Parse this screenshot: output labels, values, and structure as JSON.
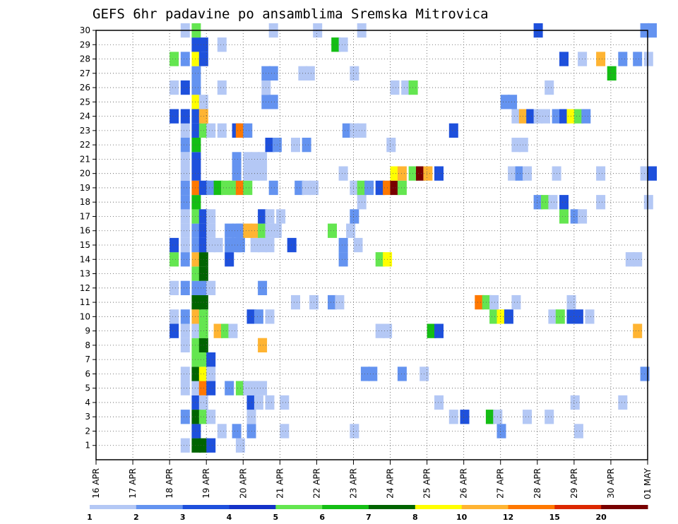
{
  "chart_data": {
    "type": "heatmap",
    "title": "GEFS 6hr padavine po ansamblima Sremska Mitrovica",
    "xlabel": "",
    "ylabel": "",
    "x_tick_labels": [
      "16 APR",
      "17 APR",
      "18 APR",
      "19 APR",
      "20 APR",
      "21 APR",
      "22 APR",
      "23 APR",
      "24 APR",
      "25 APR",
      "26 APR",
      "27 APR",
      "28 APR",
      "29 APR",
      "30 APR",
      "01 MAY"
    ],
    "x_range_days": [
      0,
      15
    ],
    "y_tick_labels": [
      "1",
      "2",
      "3",
      "4",
      "5",
      "6",
      "7",
      "8",
      "9",
      "10",
      "11",
      "12",
      "13",
      "14",
      "15",
      "16",
      "17",
      "18",
      "19",
      "20",
      "21",
      "22",
      "23",
      "24",
      "25",
      "26",
      "27",
      "28",
      "29",
      "30"
    ],
    "y_range": [
      0,
      30
    ],
    "grid": true,
    "colorbar": {
      "labels": [
        "1",
        "2",
        "3",
        "4",
        "5",
        "6",
        "7",
        "8",
        "10",
        "12",
        "15",
        "20"
      ],
      "colors": [
        "#b4c8f5",
        "#6493f0",
        "#1e50dc",
        "#1432c8",
        "#64e650",
        "#14be14",
        "#006400",
        "#ffff00",
        "#ffb432",
        "#ff7800",
        "#dc2800",
        "#780000"
      ]
    },
    "cells": [
      [
        1,
        2.3,
        1
      ],
      [
        1,
        2.6,
        7
      ],
      [
        1,
        2.8,
        7
      ],
      [
        1,
        3.0,
        3
      ],
      [
        1,
        3.8,
        1
      ],
      [
        2,
        2.6,
        3
      ],
      [
        2,
        3.3,
        1
      ],
      [
        2,
        3.7,
        2
      ],
      [
        2,
        4.1,
        2
      ],
      [
        2,
        5.0,
        1
      ],
      [
        2,
        6.9,
        1
      ],
      [
        2,
        10.9,
        2
      ],
      [
        2,
        13.0,
        1
      ],
      [
        3,
        2.3,
        2
      ],
      [
        3,
        2.6,
        7
      ],
      [
        3,
        2.8,
        5
      ],
      [
        3,
        3.0,
        1
      ],
      [
        3,
        4.1,
        1
      ],
      [
        3,
        9.6,
        1
      ],
      [
        3,
        9.9,
        3
      ],
      [
        3,
        10.6,
        6
      ],
      [
        3,
        10.8,
        1
      ],
      [
        3,
        11.6,
        1
      ],
      [
        3,
        12.2,
        1
      ],
      [
        4,
        2.6,
        3
      ],
      [
        4,
        2.8,
        1
      ],
      [
        4,
        4.1,
        3
      ],
      [
        4,
        4.3,
        1
      ],
      [
        4,
        4.6,
        1
      ],
      [
        4,
        5.0,
        1
      ],
      [
        4,
        9.2,
        1
      ],
      [
        4,
        12.9,
        1
      ],
      [
        4,
        14.2,
        1
      ],
      [
        5,
        2.3,
        1
      ],
      [
        5,
        2.6,
        1
      ],
      [
        5,
        2.8,
        10
      ],
      [
        5,
        3.0,
        3
      ],
      [
        5,
        3.5,
        2
      ],
      [
        5,
        3.8,
        5
      ],
      [
        5,
        4.0,
        1
      ],
      [
        5,
        4.2,
        1
      ],
      [
        5,
        4.4,
        1
      ],
      [
        6,
        2.3,
        1
      ],
      [
        6,
        2.6,
        7
      ],
      [
        6,
        2.8,
        8
      ],
      [
        6,
        3.0,
        1
      ],
      [
        6,
        7.2,
        2
      ],
      [
        6,
        7.4,
        2
      ],
      [
        6,
        8.2,
        2
      ],
      [
        6,
        8.8,
        1
      ],
      [
        6,
        14.8,
        2
      ],
      [
        7,
        2.6,
        5
      ],
      [
        7,
        2.8,
        5
      ],
      [
        7,
        3.0,
        3
      ],
      [
        8,
        2.3,
        1
      ],
      [
        8,
        2.6,
        5
      ],
      [
        8,
        2.8,
        7
      ],
      [
        8,
        4.4,
        9
      ],
      [
        9,
        2.0,
        3
      ],
      [
        9,
        2.3,
        1
      ],
      [
        9,
        2.6,
        1
      ],
      [
        9,
        2.8,
        5
      ],
      [
        9,
        3.2,
        9
      ],
      [
        9,
        3.4,
        5
      ],
      [
        9,
        3.6,
        1
      ],
      [
        9,
        7.6,
        1
      ],
      [
        9,
        7.8,
        1
      ],
      [
        9,
        9.0,
        6
      ],
      [
        9,
        9.2,
        3
      ],
      [
        9,
        14.6,
        9
      ],
      [
        10,
        2.0,
        1
      ],
      [
        10,
        2.3,
        2
      ],
      [
        10,
        2.6,
        9
      ],
      [
        10,
        2.8,
        5
      ],
      [
        10,
        4.1,
        3
      ],
      [
        10,
        4.3,
        2
      ],
      [
        10,
        4.6,
        1
      ],
      [
        10,
        10.7,
        5
      ],
      [
        10,
        10.9,
        8
      ],
      [
        10,
        11.1,
        3
      ],
      [
        10,
        12.3,
        1
      ],
      [
        10,
        12.5,
        5
      ],
      [
        10,
        12.8,
        3
      ],
      [
        10,
        13.0,
        3
      ],
      [
        10,
        13.3,
        1
      ],
      [
        11,
        2.6,
        7
      ],
      [
        11,
        2.8,
        7
      ],
      [
        11,
        5.3,
        1
      ],
      [
        11,
        5.8,
        1
      ],
      [
        11,
        6.3,
        2
      ],
      [
        11,
        6.5,
        1
      ],
      [
        11,
        10.3,
        10
      ],
      [
        11,
        10.5,
        5
      ],
      [
        11,
        10.7,
        1
      ],
      [
        11,
        11.3,
        1
      ],
      [
        11,
        12.8,
        1
      ],
      [
        12,
        2.0,
        1
      ],
      [
        12,
        2.3,
        2
      ],
      [
        12,
        2.6,
        2
      ],
      [
        12,
        2.8,
        2
      ],
      [
        12,
        3.0,
        1
      ],
      [
        12,
        4.4,
        2
      ],
      [
        13,
        2.6,
        5
      ],
      [
        13,
        2.8,
        7
      ],
      [
        14,
        2.0,
        5
      ],
      [
        14,
        2.3,
        2
      ],
      [
        14,
        2.6,
        9
      ],
      [
        14,
        2.8,
        7
      ],
      [
        14,
        3.5,
        3
      ],
      [
        14,
        6.6,
        2
      ],
      [
        14,
        7.6,
        5
      ],
      [
        14,
        7.8,
        8
      ],
      [
        14,
        14.4,
        1
      ],
      [
        14,
        14.6,
        1
      ],
      [
        15,
        2.0,
        3
      ],
      [
        15,
        2.3,
        1
      ],
      [
        15,
        2.6,
        2
      ],
      [
        15,
        2.8,
        3
      ],
      [
        15,
        3.0,
        1
      ],
      [
        15,
        3.2,
        1
      ],
      [
        15,
        3.5,
        2
      ],
      [
        15,
        3.7,
        2
      ],
      [
        15,
        3.8,
        2
      ],
      [
        15,
        4.2,
        1
      ],
      [
        15,
        4.4,
        1
      ],
      [
        15,
        4.6,
        1
      ],
      [
        15,
        5.2,
        3
      ],
      [
        15,
        6.6,
        2
      ],
      [
        15,
        7.0,
        1
      ],
      [
        16,
        2.3,
        1
      ],
      [
        16,
        2.6,
        2
      ],
      [
        16,
        2.8,
        3
      ],
      [
        16,
        3.0,
        1
      ],
      [
        16,
        3.5,
        2
      ],
      [
        16,
        3.7,
        2
      ],
      [
        16,
        3.8,
        2
      ],
      [
        16,
        4.0,
        9
      ],
      [
        16,
        4.2,
        9
      ],
      [
        16,
        4.4,
        5
      ],
      [
        16,
        4.6,
        1
      ],
      [
        16,
        4.8,
        1
      ],
      [
        16,
        6.3,
        5
      ],
      [
        16,
        6.8,
        1
      ],
      [
        17,
        2.3,
        1
      ],
      [
        17,
        2.6,
        5
      ],
      [
        17,
        2.8,
        3
      ],
      [
        17,
        3.0,
        1
      ],
      [
        17,
        4.4,
        3
      ],
      [
        17,
        4.6,
        1
      ],
      [
        17,
        4.9,
        1
      ],
      [
        17,
        6.9,
        2
      ],
      [
        17,
        12.6,
        5
      ],
      [
        17,
        12.9,
        2
      ],
      [
        17,
        13.1,
        1
      ],
      [
        18,
        2.3,
        2
      ],
      [
        18,
        2.6,
        6
      ],
      [
        18,
        7.1,
        1
      ],
      [
        18,
        11.9,
        2
      ],
      [
        18,
        12.1,
        5
      ],
      [
        18,
        12.3,
        1
      ],
      [
        18,
        12.6,
        3
      ],
      [
        18,
        13.6,
        1
      ],
      [
        18,
        14.9,
        1
      ],
      [
        19,
        2.3,
        2
      ],
      [
        19,
        2.6,
        10
      ],
      [
        19,
        2.8,
        3
      ],
      [
        19,
        3.0,
        2
      ],
      [
        19,
        3.2,
        6
      ],
      [
        19,
        3.4,
        5
      ],
      [
        19,
        3.6,
        5
      ],
      [
        19,
        3.8,
        10
      ],
      [
        19,
        4.0,
        5
      ],
      [
        19,
        4.7,
        2
      ],
      [
        19,
        5.4,
        2
      ],
      [
        19,
        5.6,
        1
      ],
      [
        19,
        5.8,
        1
      ],
      [
        19,
        6.9,
        1
      ],
      [
        19,
        7.1,
        5
      ],
      [
        19,
        7.3,
        2
      ],
      [
        19,
        7.6,
        3
      ],
      [
        19,
        7.8,
        10
      ],
      [
        19,
        8.0,
        12
      ],
      [
        19,
        8.2,
        5
      ],
      [
        20,
        2.3,
        1
      ],
      [
        20,
        2.6,
        3
      ],
      [
        20,
        3.7,
        2
      ],
      [
        20,
        4.0,
        1
      ],
      [
        20,
        4.2,
        1
      ],
      [
        20,
        4.4,
        1
      ],
      [
        20,
        6.6,
        1
      ],
      [
        20,
        8.0,
        8
      ],
      [
        20,
        8.2,
        9
      ],
      [
        20,
        8.5,
        5
      ],
      [
        20,
        8.7,
        12
      ],
      [
        20,
        8.9,
        9
      ],
      [
        20,
        9.2,
        3
      ],
      [
        20,
        11.2,
        1
      ],
      [
        20,
        11.4,
        2
      ],
      [
        20,
        11.6,
        1
      ],
      [
        20,
        12.4,
        1
      ],
      [
        20,
        13.6,
        1
      ],
      [
        20,
        14.8,
        1
      ],
      [
        20,
        15.0,
        3
      ],
      [
        21,
        2.3,
        1
      ],
      [
        21,
        2.6,
        3
      ],
      [
        21,
        3.7,
        2
      ],
      [
        21,
        4.0,
        1
      ],
      [
        21,
        4.2,
        1
      ],
      [
        21,
        4.4,
        1
      ],
      [
        22,
        2.3,
        2
      ],
      [
        22,
        2.6,
        6
      ],
      [
        22,
        4.6,
        3
      ],
      [
        22,
        4.8,
        2
      ],
      [
        22,
        5.3,
        1
      ],
      [
        22,
        5.6,
        2
      ],
      [
        22,
        7.9,
        1
      ],
      [
        22,
        11.3,
        1
      ],
      [
        22,
        11.5,
        1
      ],
      [
        23,
        2.3,
        1
      ],
      [
        23,
        2.6,
        3
      ],
      [
        23,
        2.8,
        5
      ],
      [
        23,
        3.0,
        1
      ],
      [
        23,
        3.3,
        1
      ],
      [
        23,
        3.7,
        3
      ],
      [
        23,
        3.8,
        10
      ],
      [
        23,
        4.0,
        2
      ],
      [
        23,
        6.7,
        2
      ],
      [
        23,
        6.9,
        1
      ],
      [
        23,
        7.1,
        1
      ],
      [
        23,
        9.6,
        3
      ],
      [
        24,
        2.0,
        3
      ],
      [
        24,
        2.3,
        3
      ],
      [
        24,
        2.6,
        3
      ],
      [
        24,
        2.8,
        9
      ],
      [
        24,
        11.3,
        1
      ],
      [
        24,
        11.5,
        9
      ],
      [
        24,
        11.7,
        3
      ],
      [
        24,
        11.9,
        1
      ],
      [
        24,
        12.1,
        1
      ],
      [
        24,
        12.4,
        2
      ],
      [
        24,
        12.6,
        3
      ],
      [
        24,
        12.8,
        8
      ],
      [
        24,
        13.0,
        5
      ],
      [
        24,
        13.2,
        2
      ],
      [
        25,
        2.6,
        8
      ],
      [
        25,
        2.8,
        1
      ],
      [
        25,
        4.5,
        2
      ],
      [
        25,
        4.7,
        2
      ],
      [
        25,
        11.0,
        2
      ],
      [
        25,
        11.2,
        2
      ],
      [
        26,
        2.0,
        1
      ],
      [
        26,
        2.3,
        3
      ],
      [
        26,
        2.6,
        2
      ],
      [
        26,
        3.3,
        1
      ],
      [
        26,
        4.5,
        1
      ],
      [
        26,
        8.0,
        1
      ],
      [
        26,
        8.3,
        1
      ],
      [
        26,
        8.5,
        5
      ],
      [
        26,
        12.2,
        1
      ],
      [
        27,
        2.6,
        2
      ],
      [
        27,
        4.5,
        2
      ],
      [
        27,
        4.7,
        2
      ],
      [
        27,
        5.5,
        1
      ],
      [
        27,
        5.7,
        1
      ],
      [
        27,
        6.9,
        1
      ],
      [
        27,
        13.9,
        6
      ],
      [
        28,
        2.0,
        5
      ],
      [
        28,
        2.3,
        2
      ],
      [
        28,
        2.6,
        8
      ],
      [
        28,
        2.8,
        3
      ],
      [
        28,
        12.6,
        3
      ],
      [
        28,
        13.1,
        1
      ],
      [
        28,
        13.6,
        9
      ],
      [
        28,
        14.2,
        2
      ],
      [
        28,
        14.6,
        2
      ],
      [
        28,
        14.9,
        1
      ],
      [
        29,
        2.6,
        3
      ],
      [
        29,
        2.8,
        3
      ],
      [
        29,
        3.3,
        1
      ],
      [
        29,
        6.4,
        6
      ],
      [
        29,
        6.6,
        1
      ],
      [
        30,
        2.3,
        1
      ],
      [
        30,
        2.6,
        5
      ],
      [
        30,
        4.7,
        1
      ],
      [
        30,
        5.9,
        1
      ],
      [
        30,
        7.1,
        1
      ],
      [
        30,
        11.9,
        3
      ],
      [
        30,
        14.8,
        2
      ],
      [
        30,
        15.0,
        2
      ]
    ]
  }
}
